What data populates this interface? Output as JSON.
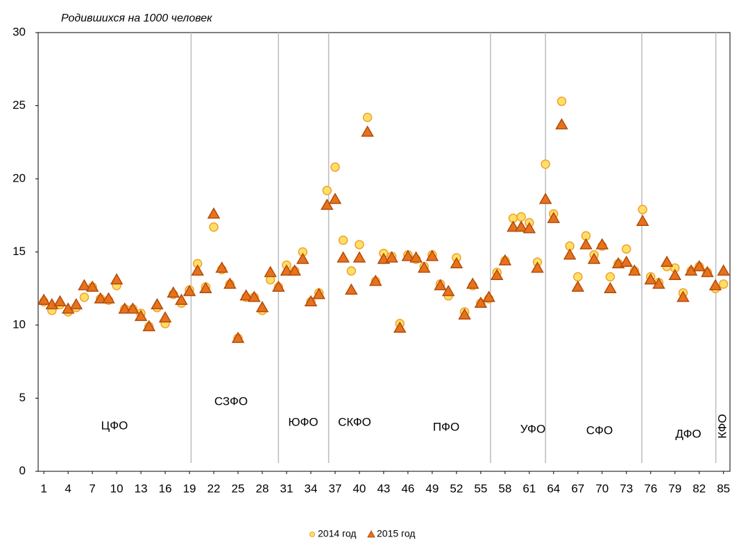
{
  "chart_data": {
    "type": "scatter",
    "title": "Родившихся на 1000 человек",
    "x": [
      1,
      2,
      3,
      4,
      5,
      6,
      7,
      8,
      9,
      10,
      11,
      12,
      13,
      14,
      15,
      16,
      17,
      18,
      19,
      20,
      21,
      22,
      23,
      24,
      25,
      26,
      27,
      28,
      29,
      30,
      31,
      32,
      33,
      34,
      35,
      36,
      37,
      38,
      39,
      40,
      41,
      42,
      43,
      44,
      45,
      46,
      47,
      48,
      49,
      50,
      51,
      52,
      53,
      54,
      55,
      56,
      57,
      58,
      59,
      60,
      61,
      62,
      63,
      64,
      65,
      66,
      67,
      68,
      69,
      70,
      71,
      72,
      73,
      74,
      75,
      76,
      77,
      78,
      79,
      80,
      81,
      82,
      83,
      84,
      85
    ],
    "series": [
      {
        "name": "2014 год",
        "marker": "circle",
        "color": "#ffe066",
        "edge": "#f0a030",
        "values": [
          11.6,
          11.0,
          11.4,
          10.9,
          11.2,
          11.9,
          12.6,
          11.8,
          11.7,
          12.7,
          11.1,
          11.1,
          10.8,
          9.9,
          11.2,
          10.1,
          12.1,
          11.5,
          12.4,
          14.2,
          12.6,
          16.7,
          13.8,
          12.8,
          9.1,
          11.9,
          11.9,
          11.0,
          13.1,
          12.6,
          14.1,
          13.7,
          15.0,
          11.6,
          12.2,
          19.2,
          20.8,
          15.8,
          13.7,
          15.5,
          24.2,
          13.0,
          14.9,
          14.7,
          10.1,
          14.8,
          14.5,
          14.0,
          14.8,
          12.8,
          12.0,
          14.6,
          10.9,
          12.7,
          11.5,
          11.8,
          13.6,
          14.4,
          17.3,
          17.4,
          17.0,
          14.3,
          21.0,
          17.6,
          25.3,
          15.4,
          13.3,
          16.1,
          14.8,
          15.4,
          13.3,
          14.2,
          15.2,
          13.7,
          17.9,
          13.3,
          12.9,
          14.0,
          13.9,
          12.2,
          13.7,
          14.0,
          13.6,
          12.5,
          12.8
        ]
      },
      {
        "name": "2015 год",
        "marker": "triangle",
        "color": "#e8721c",
        "edge": "#b04a0a",
        "values": [
          11.7,
          11.4,
          11.6,
          11.1,
          11.4,
          12.7,
          12.6,
          11.8,
          11.8,
          13.1,
          11.1,
          11.1,
          10.6,
          9.9,
          11.4,
          10.5,
          12.2,
          11.7,
          12.3,
          13.7,
          12.5,
          17.6,
          13.9,
          12.8,
          9.1,
          12.0,
          11.9,
          11.2,
          13.6,
          12.6,
          13.7,
          13.7,
          14.5,
          11.6,
          12.1,
          18.2,
          18.6,
          14.6,
          12.4,
          14.6,
          23.2,
          13.0,
          14.5,
          14.6,
          9.8,
          14.7,
          14.6,
          13.9,
          14.7,
          12.7,
          12.3,
          14.2,
          10.7,
          12.8,
          11.5,
          11.9,
          13.4,
          14.4,
          16.7,
          16.7,
          16.6,
          13.9,
          18.6,
          17.3,
          23.7,
          14.8,
          12.6,
          15.5,
          14.5,
          15.5,
          12.5,
          14.2,
          14.3,
          13.7,
          17.1,
          13.1,
          12.8,
          14.3,
          13.4,
          11.9,
          13.7,
          14.0,
          13.6,
          12.7,
          13.7
        ]
      }
    ],
    "xlim": [
      0.3,
      85.8
    ],
    "xticks": [
      1,
      4,
      7,
      10,
      13,
      16,
      19,
      22,
      25,
      28,
      31,
      34,
      37,
      40,
      43,
      46,
      49,
      52,
      55,
      58,
      61,
      64,
      67,
      70,
      73,
      76,
      79,
      82,
      85
    ],
    "ylim": [
      0,
      30
    ],
    "yticks": [
      0,
      5,
      10,
      15,
      20,
      25,
      30
    ],
    "separators": [
      19.2,
      30.0,
      36.2,
      56.2,
      63.0,
      74.9,
      84.05
    ],
    "annotations": [
      "ЦФО",
      "СЗФО",
      "ЮФО",
      "СКФО",
      "ПФО",
      "УФО",
      "СФО",
      "ДФО",
      "КФО"
    ],
    "legend": "bottom"
  }
}
